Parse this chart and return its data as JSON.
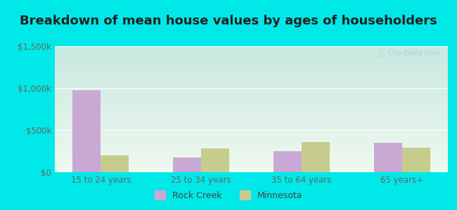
{
  "title": "Breakdown of mean house values by ages of householders",
  "categories": [
    "15 to 24 years",
    "25 to 34 years",
    "35 to 64 years",
    "65 years+"
  ],
  "rock_creek": [
    975000,
    175000,
    250000,
    350000
  ],
  "minnesota": [
    200000,
    280000,
    360000,
    295000
  ],
  "bar_color_rc": "#c9a8d4",
  "bar_color_mn": "#c5cc8e",
  "ylim": [
    0,
    1500000
  ],
  "yticks": [
    0,
    500000,
    1000000,
    1500000
  ],
  "ytick_labels": [
    "$0",
    "$500k",
    "$1,000k",
    "$1,500k"
  ],
  "legend_labels": [
    "Rock Creek",
    "Minnesota"
  ],
  "bg_outer": "#00e8e8",
  "grad_top": "#c8e8e0",
  "grad_bottom": "#eef8ee",
  "title_fontsize": 13,
  "watermark": "ⓘ  City-Data.com",
  "title_color": "#222222"
}
